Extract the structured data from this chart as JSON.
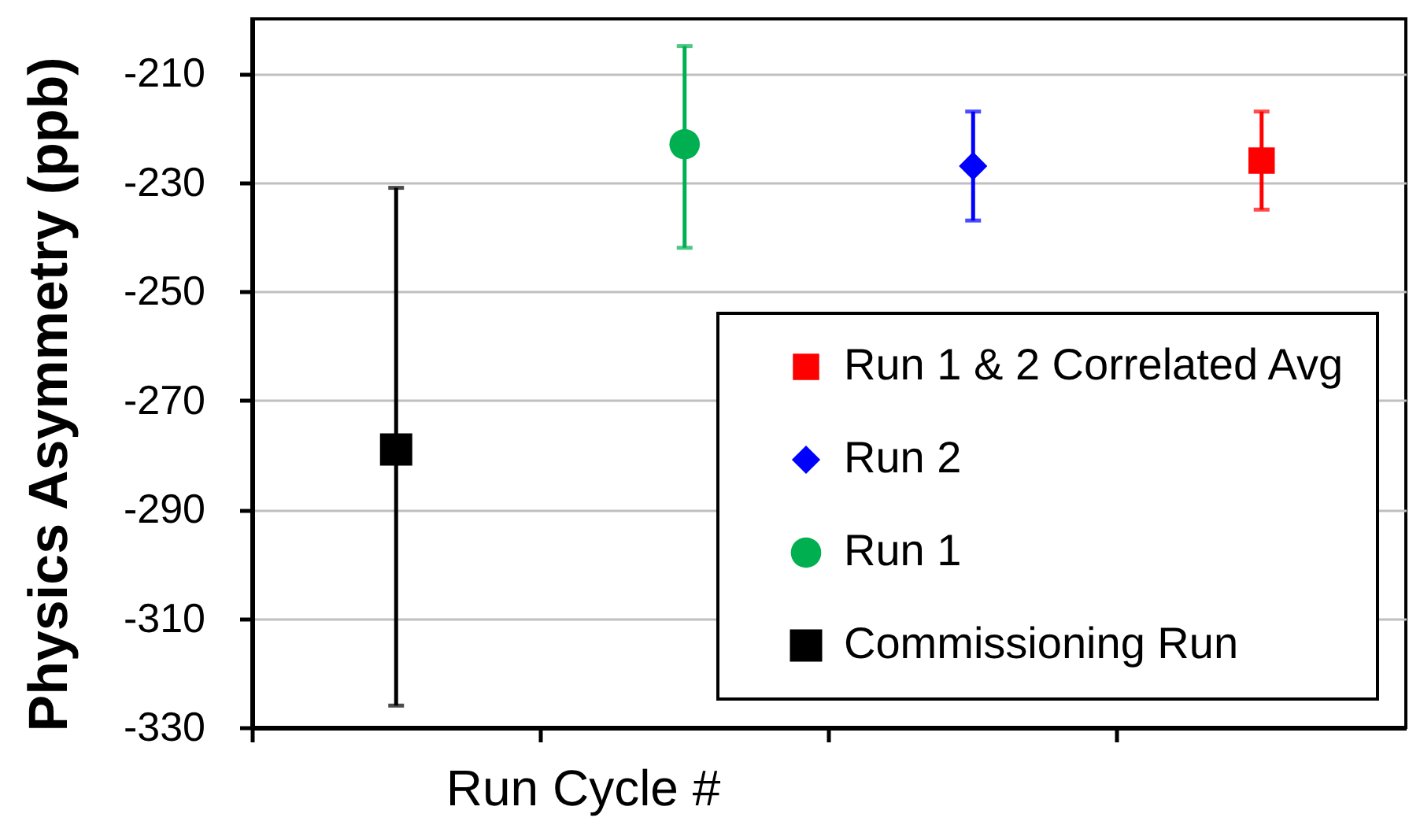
{
  "chart_data": {
    "type": "scatter",
    "xlabel": "Run Cycle #",
    "ylabel": "Physics Asymmetry (ppb)",
    "categories": [
      null,
      null,
      null,
      null
    ],
    "series": [
      {
        "name": "Run 1 & 2 Correlated Avg",
        "color": "#ff0000",
        "marker": "square",
        "values": [
          null,
          null,
          null,
          -226
        ],
        "errors": [
          null,
          null,
          null,
          [
            -235,
            -217
          ]
        ]
      },
      {
        "name": "Run 2",
        "color": "#0000ff",
        "marker": "diamond",
        "values": [
          null,
          null,
          -227,
          null
        ],
        "errors": [
          null,
          null,
          [
            -237,
            -217
          ],
          null
        ]
      },
      {
        "name": "Run 1",
        "color": "#00b050",
        "marker": "circle",
        "values": [
          null,
          -223,
          null,
          null
        ],
        "errors": [
          null,
          [
            -242,
            -205
          ],
          null,
          null
        ]
      },
      {
        "name": "Commissioning Run",
        "color": "#000000",
        "marker": "square",
        "values": [
          -279,
          null,
          null,
          null
        ],
        "errors": [
          [
            -326,
            -231
          ],
          null,
          null,
          null
        ]
      }
    ],
    "ylim": [
      -330,
      -200
    ],
    "yticks": [
      -330,
      -310,
      -290,
      -270,
      -250,
      -230,
      -210
    ],
    "grid": "y",
    "legend": "bottom right",
    "tick_labels": "y"
  }
}
